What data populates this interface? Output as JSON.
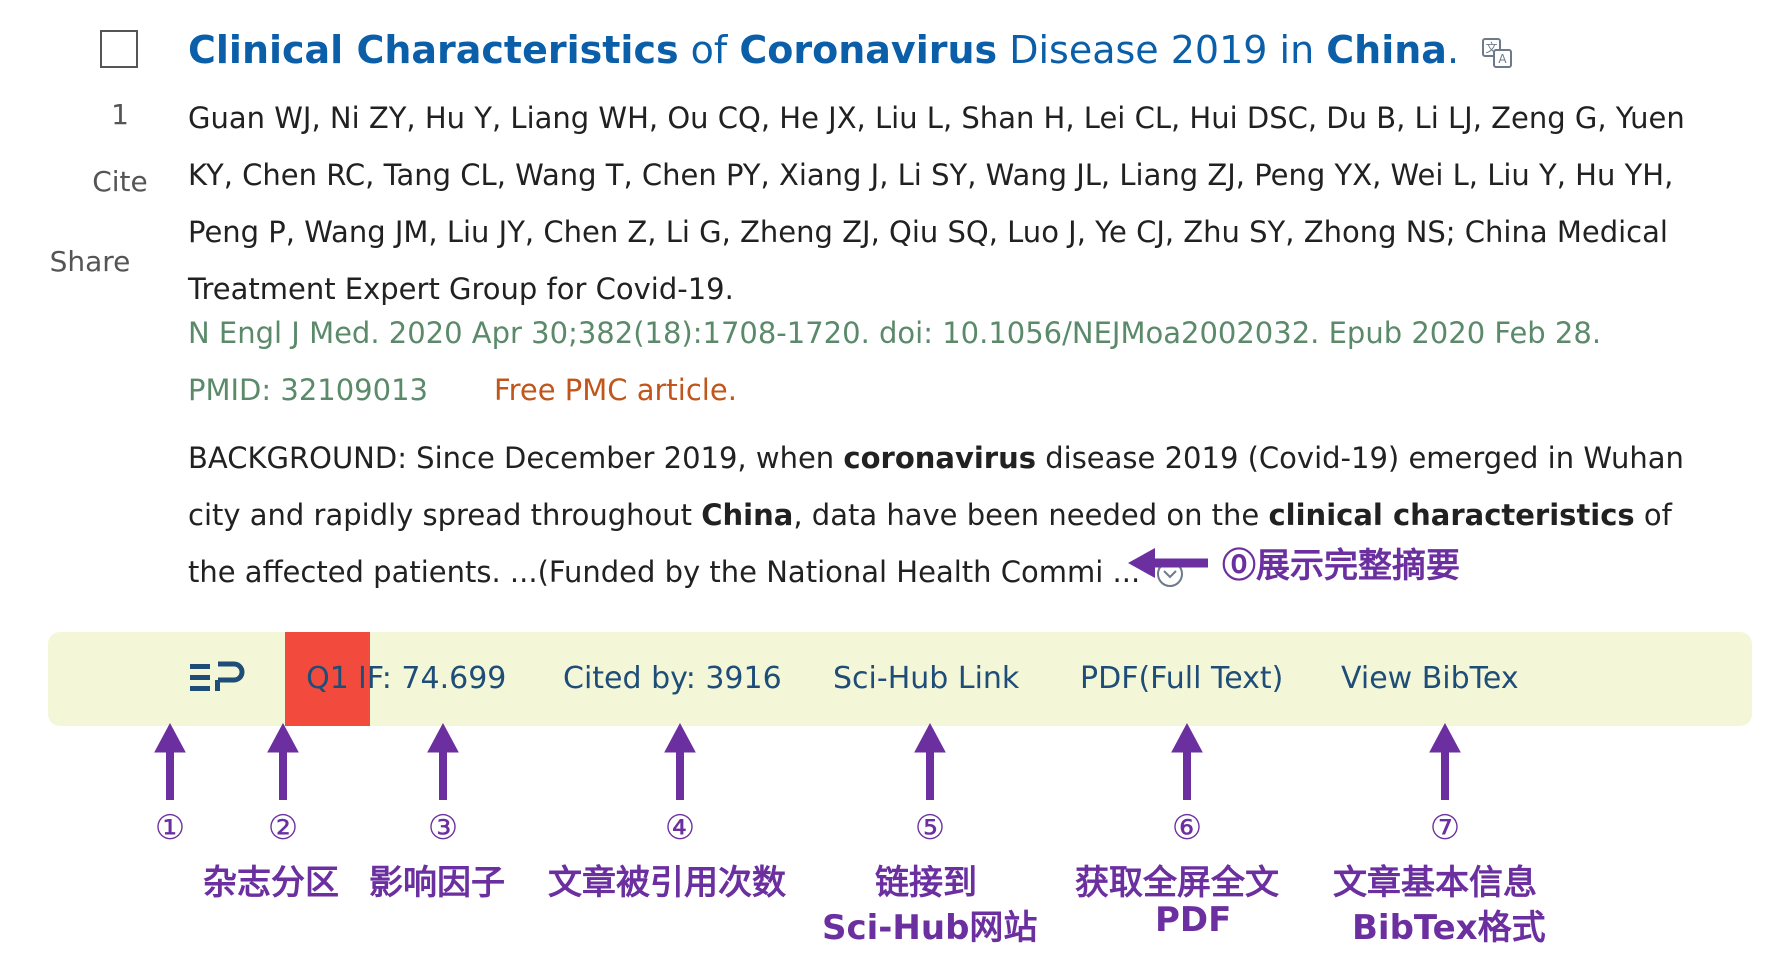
{
  "side": {
    "index": "1",
    "cite": "Cite",
    "share": "Share"
  },
  "article": {
    "title_parts": [
      {
        "t": "Clinical Characteristics",
        "b": true
      },
      {
        "t": " of ",
        "b": false
      },
      {
        "t": "Coronavirus",
        "b": true
      },
      {
        "t": " Disease 2019 in ",
        "b": false
      },
      {
        "t": "China",
        "b": true
      },
      {
        "t": ".",
        "b": false
      }
    ],
    "authors": "Guan WJ, Ni ZY, Hu Y, Liang WH, Ou CQ, He JX, Liu L, Shan H, Lei CL, Hui DSC, Du B, Li LJ, Zeng G, Yuen KY, Chen RC, Tang CL, Wang T, Chen PY, Xiang J, Li SY, Wang JL, Liang ZJ, Peng YX, Wei L, Liu Y, Hu YH, Peng P, Wang JM, Liu JY, Chen Z, Li G, Zheng ZJ, Qiu SQ, Luo J, Ye CJ, Zhu SY, Zhong NS; China Medical Treatment Expert Group for Covid-19.",
    "journal": "N Engl J Med. 2020 Apr 30;382(18):1708-1720. doi: 10.1056/NEJMoa2002032. Epub 2020 Feb 28.",
    "pmid": "PMID: 32109013",
    "free_pmc": "Free PMC article.",
    "abstract_parts": [
      {
        "t": "BACKGROUND: Since December 2019, when ",
        "b": false
      },
      {
        "t": "coronavirus",
        "b": true
      },
      {
        "t": " disease 2019 (Covid-19) emerged in Wuhan city and rapidly spread throughout ",
        "b": false
      },
      {
        "t": "China",
        "b": true
      },
      {
        "t": ", data have been needed on the ",
        "b": false
      },
      {
        "t": "clinical characteristics",
        "b": true
      },
      {
        "t": " of the affected patients. ...(Funded by the National Health Commi ...",
        "b": false
      }
    ]
  },
  "annotation0": "⓪展示完整摘要",
  "toolbar": {
    "q1": "Q1",
    "impact": "IF: 74.699",
    "cited": "Cited by: 3916",
    "scihub": "Sci-Hub Link",
    "pdf": "PDF(Full Text)",
    "bibtex": "View BibTex"
  },
  "annotations": [
    {
      "num": "①",
      "label": ""
    },
    {
      "num": "②",
      "label": "杂志分区"
    },
    {
      "num": "③",
      "label": "影响因子"
    },
    {
      "num": "④",
      "label": "文章被引用次数"
    },
    {
      "num": "⑤",
      "label": "链接到",
      "label2": "Sci-Hub网站"
    },
    {
      "num": "⑥",
      "label": "获取全屏全文",
      "label2": "PDF"
    },
    {
      "num": "⑦",
      "label": "文章基本信息",
      "label2": "BibTex格式"
    }
  ],
  "colors": {
    "title": "#0b5ea8",
    "journal": "#5b8a6a",
    "free_pmc": "#c0561b",
    "toolbar_bg": "#f4f6d8",
    "q1_bg": "#f24b3e",
    "annotation": "#6b2fa0"
  },
  "icons": {
    "translate": "translate-icon",
    "expand": "chevron-down-circle-icon",
    "logo": "easy-pubmed-logo"
  }
}
